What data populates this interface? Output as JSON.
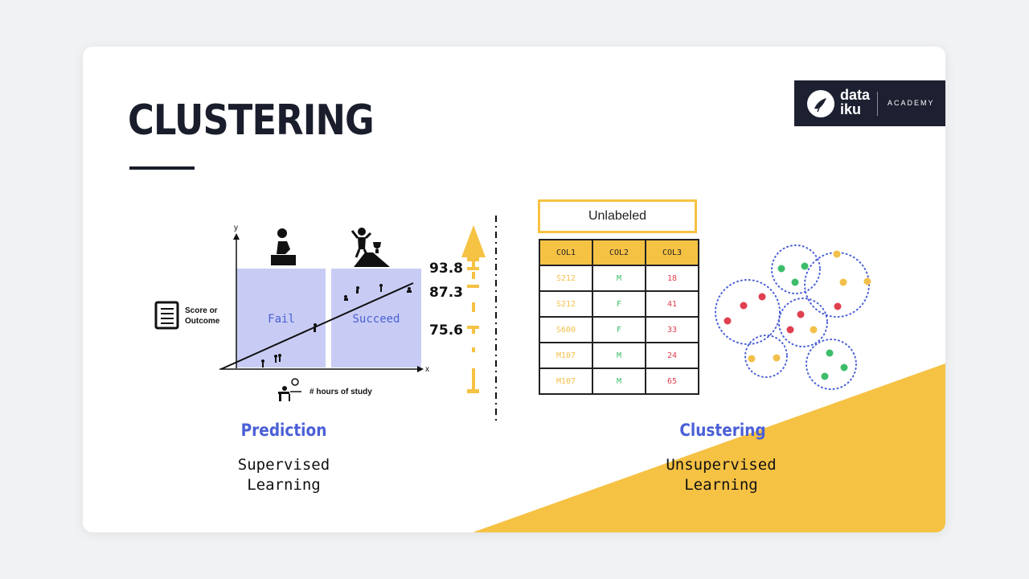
{
  "slide": {
    "title": "CLUSTERING",
    "logo": {
      "brand_line1": "data",
      "brand_line2": "iku",
      "academy": "ACADEMY"
    }
  },
  "prediction": {
    "chart_axes": {
      "y": "y",
      "x": "x"
    },
    "regions": {
      "fail": "Fail",
      "succeed": "Succeed"
    },
    "y_label": "Score or\nOutcome",
    "x_label": "# hours of study",
    "scores": [
      "93.8",
      "87.3",
      "75.6"
    ],
    "heading": "Prediction",
    "subtitle_line1": "Supervised",
    "subtitle_line2": "Learning"
  },
  "clustering": {
    "box_label": "Unlabeled",
    "table": {
      "headers": [
        "COL1",
        "COL2",
        "COL3"
      ],
      "rows": [
        [
          "S212",
          "M",
          "18"
        ],
        [
          "S212",
          "F",
          "41"
        ],
        [
          "S600",
          "F",
          "33"
        ],
        [
          "M107",
          "M",
          "24"
        ],
        [
          "M107",
          "M",
          "65"
        ]
      ]
    },
    "heading": "Clustering",
    "subtitle_line1": "Unsupervised",
    "subtitle_line2": "Learning"
  },
  "colors": {
    "accent_yellow": "#f6c244",
    "accent_blue": "#4a5fd6",
    "region_fill": "#c8ccf5",
    "dot_red": "#e0404f",
    "dot_green": "#3dbd6b",
    "dot_yellow": "#f2c04a",
    "cluster_ring": "#4a5fd6",
    "dark": "#1a1d2b"
  },
  "icons": [
    "checklist-icon",
    "person-failing-icon",
    "person-winning-trophy-icon",
    "student-desk-icon",
    "bird-logo-icon"
  ]
}
